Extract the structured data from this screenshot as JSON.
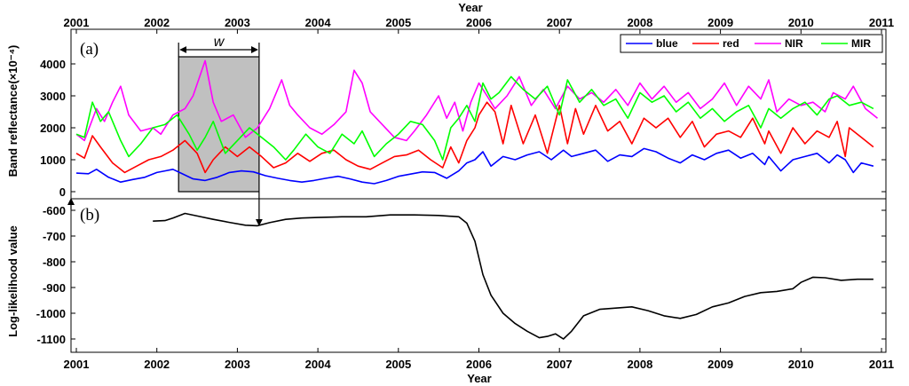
{
  "chart_data": [
    {
      "panel": "(a)",
      "type": "line",
      "title": "",
      "xlabel": "Year",
      "ylabel": "Band reflectance(×10⁻⁴)",
      "xlim": [
        2001,
        2011
      ],
      "ylim": [
        0,
        4000
      ],
      "xticks": [
        "2001",
        "2002",
        "2003",
        "2004",
        "2005",
        "2006",
        "2007",
        "2008",
        "2009",
        "2010",
        "2011"
      ],
      "yticks": [
        "0",
        "1000",
        "2000",
        "3000",
        "4000"
      ],
      "legend_position": "top-right",
      "window": {
        "label": "w",
        "x_start": 2002.27,
        "x_end": 2003.27,
        "fill": "#c0c0c0"
      },
      "series": [
        {
          "name": "blue",
          "color": "#0000ff",
          "x": [
            2001.0,
            2001.15,
            2001.25,
            2001.4,
            2001.55,
            2001.7,
            2001.85,
            2002.0,
            2002.1,
            2002.2,
            2002.3,
            2002.45,
            2002.6,
            2002.75,
            2002.9,
            2003.05,
            2003.2,
            2003.35,
            2003.5,
            2003.65,
            2003.8,
            2003.95,
            2004.1,
            2004.25,
            2004.4,
            2004.55,
            2004.7,
            2004.85,
            2005.0,
            2005.15,
            2005.3,
            2005.45,
            2005.6,
            2005.75,
            2005.85,
            2005.95,
            2006.05,
            2006.15,
            2006.3,
            2006.45,
            2006.6,
            2006.75,
            2006.9,
            2007.05,
            2007.15,
            2007.3,
            2007.45,
            2007.6,
            2007.75,
            2007.9,
            2008.05,
            2008.2,
            2008.35,
            2008.5,
            2008.65,
            2008.8,
            2008.95,
            2009.1,
            2009.25,
            2009.4,
            2009.55,
            2009.6,
            2009.75,
            2009.9,
            2010.05,
            2010.2,
            2010.35,
            2010.45,
            2010.55,
            2010.65,
            2010.75,
            2010.9
          ],
          "y": [
            580,
            560,
            700,
            450,
            300,
            380,
            450,
            600,
            650,
            700,
            580,
            400,
            350,
            450,
            600,
            650,
            620,
            500,
            420,
            350,
            300,
            350,
            420,
            480,
            400,
            300,
            250,
            350,
            480,
            550,
            620,
            600,
            420,
            650,
            900,
            1000,
            1250,
            800,
            1100,
            1000,
            1150,
            1250,
            1000,
            1300,
            1100,
            1200,
            1300,
            950,
            1150,
            1100,
            1350,
            1250,
            1050,
            900,
            1150,
            1000,
            1200,
            1300,
            1050,
            1200,
            850,
            1100,
            650,
            1000,
            1100,
            1200,
            900,
            1150,
            1000,
            600,
            900,
            800
          ]
        },
        {
          "name": "red",
          "color": "#ff0000",
          "x": [
            2001.0,
            2001.1,
            2001.2,
            2001.3,
            2001.45,
            2001.6,
            2001.75,
            2001.9,
            2002.05,
            2002.2,
            2002.35,
            2002.5,
            2002.6,
            2002.7,
            2002.85,
            2003.0,
            2003.15,
            2003.3,
            2003.45,
            2003.6,
            2003.75,
            2003.9,
            2004.05,
            2004.2,
            2004.35,
            2004.5,
            2004.65,
            2004.8,
            2004.95,
            2005.1,
            2005.25,
            2005.4,
            2005.55,
            2005.65,
            2005.75,
            2005.85,
            2005.95,
            2006.0,
            2006.1,
            2006.2,
            2006.3,
            2006.4,
            2006.55,
            2006.7,
            2006.85,
            2007.0,
            2007.1,
            2007.2,
            2007.3,
            2007.45,
            2007.6,
            2007.75,
            2007.9,
            2008.05,
            2008.2,
            2008.35,
            2008.5,
            2008.65,
            2008.8,
            2008.95,
            2009.1,
            2009.25,
            2009.4,
            2009.55,
            2009.6,
            2009.75,
            2009.9,
            2010.05,
            2010.2,
            2010.35,
            2010.45,
            2010.55,
            2010.6,
            2010.75,
            2010.9
          ],
          "y": [
            1200,
            1050,
            1750,
            1400,
            900,
            600,
            800,
            1000,
            1100,
            1300,
            1600,
            1200,
            600,
            1000,
            1400,
            1100,
            1400,
            1100,
            750,
            900,
            1200,
            950,
            1200,
            1300,
            1000,
            800,
            700,
            900,
            1100,
            1150,
            1300,
            1000,
            750,
            1400,
            900,
            1600,
            2000,
            2400,
            2800,
            2500,
            1500,
            2700,
            1500,
            2400,
            1200,
            2700,
            1500,
            2600,
            1800,
            2700,
            1900,
            2200,
            1500,
            2300,
            2000,
            2300,
            1700,
            2200,
            1400,
            1800,
            1900,
            1700,
            2300,
            1500,
            1900,
            1200,
            2000,
            1500,
            1900,
            1700,
            2200,
            1100,
            2000,
            1700,
            1400
          ]
        },
        {
          "name": "NIR",
          "color": "#ff00ff",
          "x": [
            2001.0,
            2001.1,
            2001.25,
            2001.35,
            2001.45,
            2001.55,
            2001.65,
            2001.8,
            2001.95,
            2002.05,
            2002.2,
            2002.35,
            2002.45,
            2002.6,
            2002.7,
            2002.8,
            2002.95,
            2003.1,
            2003.25,
            2003.4,
            2003.55,
            2003.65,
            2003.75,
            2003.9,
            2004.05,
            2004.2,
            2004.35,
            2004.45,
            2004.55,
            2004.65,
            2004.8,
            2004.95,
            2005.1,
            2005.2,
            2005.35,
            2005.5,
            2005.6,
            2005.7,
            2005.8,
            2005.9,
            2006.0,
            2006.1,
            2006.2,
            2006.35,
            2006.5,
            2006.65,
            2006.8,
            2006.95,
            2007.1,
            2007.25,
            2007.4,
            2007.55,
            2007.7,
            2007.85,
            2008.0,
            2008.15,
            2008.3,
            2008.45,
            2008.6,
            2008.75,
            2008.9,
            2009.05,
            2009.2,
            2009.35,
            2009.5,
            2009.6,
            2009.7,
            2009.85,
            2010.0,
            2010.15,
            2010.3,
            2010.4,
            2010.55,
            2010.65,
            2010.8,
            2010.95
          ],
          "y": [
            1800,
            1600,
            2600,
            2200,
            2800,
            3300,
            2400,
            1900,
            2000,
            1800,
            2400,
            2600,
            3000,
            4100,
            2800,
            2200,
            2400,
            1700,
            2000,
            2600,
            3500,
            2700,
            2400,
            2000,
            1800,
            2100,
            2500,
            3800,
            3400,
            2500,
            2100,
            1700,
            1600,
            1900,
            2400,
            3000,
            2300,
            2800,
            1900,
            2800,
            3400,
            3000,
            2600,
            3000,
            3600,
            2700,
            3200,
            2600,
            3300,
            2900,
            3100,
            2800,
            3200,
            2700,
            3400,
            2900,
            3300,
            2800,
            3100,
            2600,
            2900,
            3400,
            2700,
            3300,
            2900,
            3500,
            2500,
            2900,
            2700,
            2800,
            2500,
            3100,
            2900,
            3300,
            2600,
            2300
          ]
        },
        {
          "name": "MIR",
          "color": "#00ff00",
          "x": [
            2001.0,
            2001.1,
            2001.2,
            2001.3,
            2001.4,
            2001.55,
            2001.65,
            2001.8,
            2001.95,
            2002.1,
            2002.25,
            2002.4,
            2002.5,
            2002.6,
            2002.7,
            2002.85,
            2003.0,
            2003.15,
            2003.3,
            2003.45,
            2003.6,
            2003.7,
            2003.85,
            2004.0,
            2004.15,
            2004.3,
            2004.45,
            2004.55,
            2004.7,
            2004.85,
            2005.0,
            2005.15,
            2005.3,
            2005.45,
            2005.55,
            2005.65,
            2005.75,
            2005.85,
            2005.95,
            2006.05,
            2006.15,
            2006.25,
            2006.4,
            2006.55,
            2006.7,
            2006.85,
            2007.0,
            2007.1,
            2007.25,
            2007.4,
            2007.55,
            2007.7,
            2007.85,
            2008.0,
            2008.15,
            2008.3,
            2008.45,
            2008.6,
            2008.75,
            2008.9,
            2009.05,
            2009.2,
            2009.35,
            2009.5,
            2009.6,
            2009.75,
            2009.9,
            2010.05,
            2010.2,
            2010.35,
            2010.45,
            2010.6,
            2010.75,
            2010.9
          ],
          "y": [
            1800,
            1700,
            2800,
            2200,
            2500,
            1600,
            1100,
            1500,
            2000,
            2100,
            2400,
            1800,
            1300,
            1700,
            2200,
            1200,
            1600,
            2000,
            1700,
            1400,
            1000,
            1300,
            1800,
            1400,
            1200,
            1800,
            1500,
            1900,
            1100,
            1500,
            1800,
            2200,
            2100,
            1600,
            1000,
            2000,
            2300,
            2700,
            2200,
            3400,
            2900,
            3100,
            3600,
            3200,
            2900,
            3300,
            2400,
            3500,
            2800,
            3200,
            2700,
            2900,
            2300,
            3100,
            2800,
            3000,
            2500,
            2800,
            2300,
            2600,
            2200,
            2500,
            2700,
            2000,
            2600,
            2300,
            2600,
            2800,
            2400,
            2900,
            3000,
            2700,
            2800,
            2600
          ]
        }
      ]
    },
    {
      "panel": "(b)",
      "type": "line",
      "title": "",
      "xlabel": "Year",
      "ylabel": "Log-likelihood value",
      "xlim": [
        2001,
        2011
      ],
      "ylim": [
        -1150,
        -580
      ],
      "xticks": [
        "2001",
        "2002",
        "2003",
        "2004",
        "2005",
        "2006",
        "2007",
        "2008",
        "2009",
        "2010",
        "2011"
      ],
      "yticks": [
        "-600",
        "-700",
        "-800",
        "-900",
        "-1000",
        "-1100"
      ],
      "series": [
        {
          "name": "",
          "color": "#000000",
          "x": [
            2001.95,
            2002.1,
            2002.2,
            2002.35,
            2002.5,
            2002.7,
            2002.9,
            2003.1,
            2003.25,
            2003.4,
            2003.6,
            2003.8,
            2004.0,
            2004.3,
            2004.6,
            2004.9,
            2005.2,
            2005.5,
            2005.75,
            2005.85,
            2005.95,
            2006.05,
            2006.15,
            2006.3,
            2006.45,
            2006.6,
            2006.75,
            2006.85,
            2006.95,
            2007.05,
            2007.15,
            2007.3,
            2007.5,
            2007.7,
            2007.9,
            2008.1,
            2008.3,
            2008.5,
            2008.7,
            2008.9,
            2009.1,
            2009.3,
            2009.5,
            2009.7,
            2009.9,
            2010.0,
            2010.15,
            2010.3,
            2010.5,
            2010.7,
            2010.9
          ],
          "y": [
            -642,
            -640,
            -630,
            -612,
            -622,
            -635,
            -647,
            -658,
            -660,
            -648,
            -635,
            -630,
            -628,
            -625,
            -625,
            -618,
            -618,
            -620,
            -625,
            -650,
            -720,
            -850,
            -930,
            -1000,
            -1040,
            -1070,
            -1095,
            -1090,
            -1080,
            -1100,
            -1070,
            -1010,
            -985,
            -980,
            -975,
            -990,
            -1010,
            -1020,
            -1005,
            -975,
            -960,
            -935,
            -920,
            -915,
            -905,
            -880,
            -860,
            -862,
            -872,
            -868,
            -868
          ]
        }
      ]
    }
  ]
}
